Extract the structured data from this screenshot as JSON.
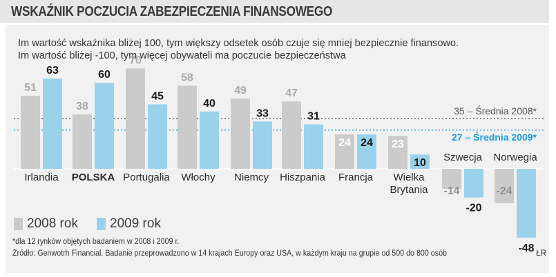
{
  "header": {
    "title": "WSKAŹNIK POCZUCIA ZABEZPIECZENIA FINANSOWEGO"
  },
  "description": {
    "line1": "Im wartość wskaźnika bliżej 100, tym większy odsetek osób czuje się mniej bezpiecznie finansowo.",
    "line2": "Im wartość bliżej -100, tym więcej obywateli ma poczucie bezpieczeństwa"
  },
  "legend": {
    "label_2008": "2008 rok",
    "label_2009": "2009 rok"
  },
  "footnote": "*dla 12 rynków objętych badaniem w 2008 i 2009 r.",
  "source": "Źródło: Genwotrh Financial. Badanie przeprowadzono w 14 krajach Europy oraz USA, w każdym kraju na grupie od 500 do 800 osób",
  "signature": "ŁR",
  "colors": {
    "bar_2008": "#cbcbcb",
    "bar_2009": "#9ad2ec",
    "highlight": "#d0202f",
    "avg_2009": "#1a9bd7",
    "avg_2008": "#555555"
  },
  "chart_data": {
    "type": "bar",
    "title": "WSKAŹNIK POCZUCIA ZABEZPIECZENIA FINANSOWEGO",
    "categories": [
      {
        "label": "Irlandia",
        "lines": [
          "Irlandia"
        ],
        "highlight": false
      },
      {
        "label": "POLSKA",
        "lines": [
          "POLSKA"
        ],
        "highlight": true
      },
      {
        "label": "Portugalia",
        "lines": [
          "Portugalia"
        ],
        "highlight": false
      },
      {
        "label": "Włochy",
        "lines": [
          "Włochy"
        ],
        "highlight": false
      },
      {
        "label": "Niemcy",
        "lines": [
          "Niemcy"
        ],
        "highlight": false
      },
      {
        "label": "Hiszpania",
        "lines": [
          "Hiszpania"
        ],
        "highlight": false
      },
      {
        "label": "Francja",
        "lines": [
          "Francja"
        ],
        "highlight": false
      },
      {
        "label": "Wielka Brytania",
        "lines": [
          "Wielka",
          "Brytania"
        ],
        "highlight": false
      },
      {
        "label": "Szwecja",
        "lines": [
          "Szwecja"
        ],
        "highlight": false
      },
      {
        "label": "Norwegia",
        "lines": [
          "Norwegia"
        ],
        "highlight": false
      }
    ],
    "series": [
      {
        "name": "2008 rok",
        "values": [
          51,
          38,
          70,
          58,
          49,
          47,
          24,
          23,
          -14,
          -24
        ]
      },
      {
        "name": "2009 rok",
        "values": [
          63,
          60,
          45,
          40,
          33,
          31,
          24,
          10,
          -20,
          -48
        ]
      }
    ],
    "averages": [
      {
        "label": "35 – Średnia 2008*",
        "value": 35
      },
      {
        "label": "27 – Średnia 2009*",
        "value": 27
      }
    ],
    "ylim": [
      -48,
      70
    ],
    "xlabel": "",
    "ylabel": ""
  }
}
